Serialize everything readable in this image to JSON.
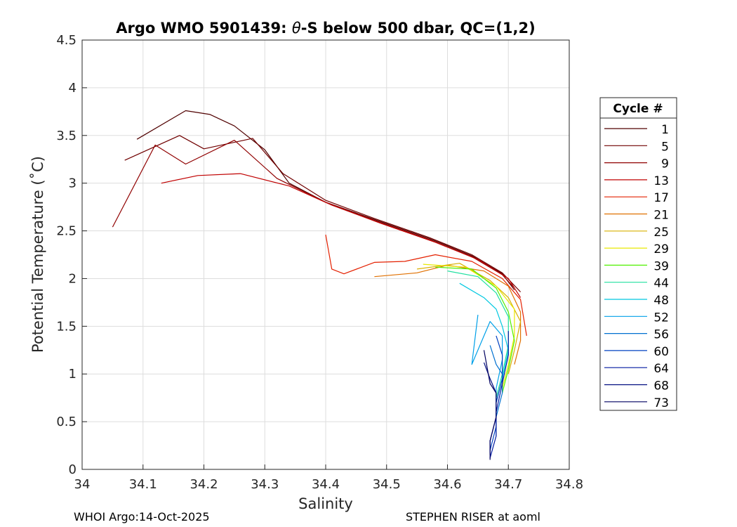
{
  "chart_data": {
    "type": "line",
    "title": "Argo WMO 5901439: θ-S below 500 dbar,  QC=(1,2)",
    "title_parts": {
      "prefix": "Argo WMO 5901439: ",
      "theta": "θ",
      "suffix": "-S below 500 dbar,  QC=(1,2)"
    },
    "xlabel": "Salinity",
    "ylabel": "Potential Temperature (˚C)",
    "xlim": [
      34,
      34.8
    ],
    "ylim": [
      0,
      4.5
    ],
    "x_ticks": [
      "34",
      "34.1",
      "34.2",
      "34.3",
      "34.4",
      "34.5",
      "34.6",
      "34.7",
      "34.8"
    ],
    "y_ticks": [
      "0",
      "0.5",
      "1",
      "1.5",
      "2",
      "2.5",
      "3",
      "3.5",
      "4",
      "4.5"
    ],
    "grid": true,
    "legend_title": "Cycle #",
    "legend_position": "right",
    "series": [
      {
        "name": "1",
        "color": "#500000",
        "points": [
          [
            34.09,
            3.46
          ],
          [
            34.17,
            3.76
          ],
          [
            34.21,
            3.72
          ],
          [
            34.25,
            3.6
          ],
          [
            34.3,
            3.35
          ],
          [
            34.34,
            3.0
          ],
          [
            34.4,
            2.8
          ],
          [
            34.48,
            2.62
          ],
          [
            34.57,
            2.42
          ],
          [
            34.64,
            2.24
          ],
          [
            34.69,
            2.05
          ],
          [
            34.71,
            1.88
          ]
        ]
      },
      {
        "name": "5",
        "color": "#700000",
        "points": [
          [
            34.07,
            3.24
          ],
          [
            34.16,
            3.5
          ],
          [
            34.2,
            3.36
          ],
          [
            34.28,
            3.47
          ],
          [
            34.33,
            3.1
          ],
          [
            34.4,
            2.82
          ],
          [
            34.48,
            2.63
          ],
          [
            34.57,
            2.43
          ],
          [
            34.64,
            2.25
          ],
          [
            34.69,
            2.06
          ],
          [
            34.72,
            1.86
          ]
        ]
      },
      {
        "name": "9",
        "color": "#900000",
        "points": [
          [
            34.05,
            2.54
          ],
          [
            34.12,
            3.4
          ],
          [
            34.17,
            3.2
          ],
          [
            34.25,
            3.45
          ],
          [
            34.32,
            3.05
          ],
          [
            34.4,
            2.8
          ],
          [
            34.48,
            2.61
          ],
          [
            34.57,
            2.41
          ],
          [
            34.64,
            2.23
          ],
          [
            34.69,
            2.04
          ],
          [
            34.71,
            1.9
          ]
        ]
      },
      {
        "name": "13",
        "color": "#c00000",
        "points": [
          [
            34.13,
            3.0
          ],
          [
            34.19,
            3.08
          ],
          [
            34.26,
            3.1
          ],
          [
            34.34,
            2.97
          ],
          [
            34.41,
            2.77
          ],
          [
            34.49,
            2.58
          ],
          [
            34.58,
            2.38
          ],
          [
            34.65,
            2.2
          ],
          [
            34.7,
            2.0
          ],
          [
            34.72,
            1.8
          ]
        ]
      },
      {
        "name": "17",
        "color": "#e42000",
        "points": [
          [
            34.4,
            2.46
          ],
          [
            34.41,
            2.1
          ],
          [
            34.43,
            2.05
          ],
          [
            34.48,
            2.17
          ],
          [
            34.53,
            2.18
          ],
          [
            34.58,
            2.25
          ],
          [
            34.64,
            2.18
          ],
          [
            34.69,
            2.0
          ],
          [
            34.72,
            1.78
          ],
          [
            34.73,
            1.4
          ]
        ]
      },
      {
        "name": "21",
        "color": "#e07000",
        "points": [
          [
            34.48,
            2.02
          ],
          [
            34.55,
            2.06
          ],
          [
            34.6,
            2.14
          ],
          [
            34.66,
            2.08
          ],
          [
            34.7,
            1.92
          ],
          [
            34.72,
            1.65
          ],
          [
            34.72,
            1.35
          ],
          [
            34.71,
            1.1
          ]
        ]
      },
      {
        "name": "25",
        "color": "#d8b000",
        "points": [
          [
            34.55,
            2.1
          ],
          [
            34.62,
            2.16
          ],
          [
            34.67,
            1.98
          ],
          [
            34.7,
            1.8
          ],
          [
            34.72,
            1.55
          ],
          [
            34.71,
            1.25
          ],
          [
            34.7,
            1.0
          ]
        ]
      },
      {
        "name": "29",
        "color": "#e8e800",
        "points": [
          [
            34.56,
            2.15
          ],
          [
            34.63,
            2.12
          ],
          [
            34.68,
            1.92
          ],
          [
            34.71,
            1.68
          ],
          [
            34.71,
            1.4
          ],
          [
            34.7,
            1.1
          ],
          [
            34.69,
            0.85
          ]
        ]
      },
      {
        "name": "39",
        "color": "#50f000",
        "points": [
          [
            34.58,
            2.12
          ],
          [
            34.64,
            2.1
          ],
          [
            34.68,
            1.9
          ],
          [
            34.7,
            1.65
          ],
          [
            34.71,
            1.35
          ],
          [
            34.7,
            1.05
          ],
          [
            34.69,
            0.8
          ]
        ]
      },
      {
        "name": "44",
        "color": "#20e0a0",
        "points": [
          [
            34.6,
            2.08
          ],
          [
            34.65,
            2.02
          ],
          [
            34.68,
            1.85
          ],
          [
            34.7,
            1.6
          ],
          [
            34.7,
            1.3
          ],
          [
            34.69,
            1.0
          ],
          [
            34.68,
            0.75
          ]
        ]
      },
      {
        "name": "48",
        "color": "#00c8e0",
        "points": [
          [
            34.62,
            1.95
          ],
          [
            34.66,
            1.8
          ],
          [
            34.68,
            1.68
          ],
          [
            34.69,
            1.5
          ],
          [
            34.7,
            1.25
          ],
          [
            34.69,
            0.95
          ],
          [
            34.68,
            0.7
          ]
        ]
      },
      {
        "name": "52",
        "color": "#00a0e8",
        "points": [
          [
            34.65,
            1.62
          ],
          [
            34.64,
            1.1
          ],
          [
            34.67,
            1.55
          ],
          [
            34.69,
            1.4
          ],
          [
            34.69,
            1.15
          ],
          [
            34.68,
            0.85
          ],
          [
            34.68,
            0.6
          ]
        ]
      },
      {
        "name": "56",
        "color": "#0070d0",
        "points": [
          [
            34.67,
            1.3
          ],
          [
            34.68,
            1.1
          ],
          [
            34.69,
            1.0
          ],
          [
            34.69,
            0.8
          ],
          [
            34.68,
            0.55
          ],
          [
            34.68,
            0.35
          ]
        ]
      },
      {
        "name": "60",
        "color": "#0040c0",
        "points": [
          [
            34.68,
            1.4
          ],
          [
            34.69,
            1.2
          ],
          [
            34.69,
            0.95
          ],
          [
            34.68,
            0.7
          ],
          [
            34.68,
            0.45
          ],
          [
            34.67,
            0.2
          ]
        ]
      },
      {
        "name": "64",
        "color": "#0018a0",
        "points": [
          [
            34.7,
            1.45
          ],
          [
            34.7,
            1.2
          ],
          [
            34.69,
            0.9
          ],
          [
            34.68,
            0.6
          ],
          [
            34.68,
            0.35
          ],
          [
            34.67,
            0.12
          ]
        ]
      },
      {
        "name": "68",
        "color": "#000c80",
        "points": [
          [
            34.66,
            1.12
          ],
          [
            34.67,
            0.95
          ],
          [
            34.68,
            0.8
          ],
          [
            34.68,
            0.55
          ],
          [
            34.67,
            0.3
          ],
          [
            34.67,
            0.15
          ]
        ]
      },
      {
        "name": "73",
        "color": "#000060",
        "points": [
          [
            34.66,
            1.25
          ],
          [
            34.67,
            0.9
          ],
          [
            34.68,
            0.8
          ],
          [
            34.68,
            0.55
          ],
          [
            34.67,
            0.3
          ],
          [
            34.67,
            0.1
          ]
        ]
      }
    ]
  },
  "footer": {
    "left": "WHOI Argo:14-Oct-2025",
    "right": "STEPHEN RISER at aoml"
  },
  "colors": {
    "grid": "#dddddd",
    "axis": "#262626"
  }
}
